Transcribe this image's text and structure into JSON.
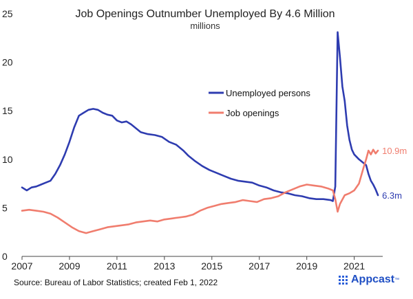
{
  "chart_data": {
    "type": "line",
    "title": "Job Openings Outnumber Unemployed By 4.6 Million",
    "subtitle": "millions",
    "x_ticks": [
      "2007",
      "2009",
      "2011",
      "2013",
      "2015",
      "2017",
      "2019",
      "2021"
    ],
    "y_ticks": [
      0,
      5,
      10,
      15,
      20,
      25
    ],
    "xlim": [
      2007,
      2022.2
    ],
    "ylim": [
      0,
      25
    ],
    "grid": false,
    "legend_position": "center-right",
    "series": [
      {
        "name": "Unemployed persons",
        "color": "#2e3cb0",
        "end_label": "6.3m",
        "points": [
          [
            2007.0,
            7.1
          ],
          [
            2007.2,
            6.8
          ],
          [
            2007.4,
            7.1
          ],
          [
            2007.6,
            7.2
          ],
          [
            2007.8,
            7.4
          ],
          [
            2008.0,
            7.6
          ],
          [
            2008.2,
            7.8
          ],
          [
            2008.4,
            8.5
          ],
          [
            2008.6,
            9.4
          ],
          [
            2008.8,
            10.5
          ],
          [
            2009.0,
            11.8
          ],
          [
            2009.2,
            13.3
          ],
          [
            2009.4,
            14.5
          ],
          [
            2009.6,
            14.8
          ],
          [
            2009.8,
            15.1
          ],
          [
            2010.0,
            15.2
          ],
          [
            2010.2,
            15.1
          ],
          [
            2010.4,
            14.8
          ],
          [
            2010.6,
            14.6
          ],
          [
            2010.8,
            14.5
          ],
          [
            2011.0,
            14.0
          ],
          [
            2011.2,
            13.8
          ],
          [
            2011.4,
            13.9
          ],
          [
            2011.6,
            13.6
          ],
          [
            2011.8,
            13.2
          ],
          [
            2012.0,
            12.8
          ],
          [
            2012.3,
            12.6
          ],
          [
            2012.6,
            12.5
          ],
          [
            2012.9,
            12.3
          ],
          [
            2013.2,
            11.8
          ],
          [
            2013.5,
            11.5
          ],
          [
            2013.8,
            10.9
          ],
          [
            2014.0,
            10.4
          ],
          [
            2014.3,
            9.8
          ],
          [
            2014.6,
            9.3
          ],
          [
            2014.9,
            8.9
          ],
          [
            2015.2,
            8.6
          ],
          [
            2015.5,
            8.3
          ],
          [
            2015.8,
            8.0
          ],
          [
            2016.1,
            7.8
          ],
          [
            2016.4,
            7.7
          ],
          [
            2016.7,
            7.6
          ],
          [
            2017.0,
            7.3
          ],
          [
            2017.3,
            7.1
          ],
          [
            2017.6,
            6.8
          ],
          [
            2017.9,
            6.6
          ],
          [
            2018.2,
            6.5
          ],
          [
            2018.5,
            6.3
          ],
          [
            2018.8,
            6.2
          ],
          [
            2019.1,
            6.0
          ],
          [
            2019.4,
            5.9
          ],
          [
            2019.7,
            5.9
          ],
          [
            2020.0,
            5.8
          ],
          [
            2020.1,
            5.7
          ],
          [
            2020.2,
            7.2
          ],
          [
            2020.3,
            23.1
          ],
          [
            2020.4,
            20.5
          ],
          [
            2020.5,
            17.5
          ],
          [
            2020.6,
            16.0
          ],
          [
            2020.7,
            13.5
          ],
          [
            2020.8,
            12.0
          ],
          [
            2020.9,
            11.0
          ],
          [
            2021.0,
            10.5
          ],
          [
            2021.2,
            10.0
          ],
          [
            2021.4,
            9.6
          ],
          [
            2021.5,
            9.4
          ],
          [
            2021.6,
            8.5
          ],
          [
            2021.7,
            7.8
          ],
          [
            2021.8,
            7.4
          ],
          [
            2021.9,
            6.9
          ],
          [
            2022.0,
            6.3
          ]
        ]
      },
      {
        "name": "Job openings",
        "color": "#f07d6e",
        "end_label": "10.9m",
        "points": [
          [
            2007.0,
            4.7
          ],
          [
            2007.3,
            4.8
          ],
          [
            2007.6,
            4.7
          ],
          [
            2007.9,
            4.6
          ],
          [
            2008.2,
            4.4
          ],
          [
            2008.5,
            4.0
          ],
          [
            2008.8,
            3.5
          ],
          [
            2009.1,
            3.0
          ],
          [
            2009.4,
            2.6
          ],
          [
            2009.7,
            2.4
          ],
          [
            2010.0,
            2.6
          ],
          [
            2010.3,
            2.8
          ],
          [
            2010.6,
            3.0
          ],
          [
            2010.9,
            3.1
          ],
          [
            2011.2,
            3.2
          ],
          [
            2011.5,
            3.3
          ],
          [
            2011.8,
            3.5
          ],
          [
            2012.1,
            3.6
          ],
          [
            2012.4,
            3.7
          ],
          [
            2012.7,
            3.6
          ],
          [
            2013.0,
            3.8
          ],
          [
            2013.3,
            3.9
          ],
          [
            2013.6,
            4.0
          ],
          [
            2013.9,
            4.1
          ],
          [
            2014.2,
            4.3
          ],
          [
            2014.5,
            4.7
          ],
          [
            2014.8,
            5.0
          ],
          [
            2015.1,
            5.2
          ],
          [
            2015.4,
            5.4
          ],
          [
            2015.7,
            5.5
          ],
          [
            2016.0,
            5.6
          ],
          [
            2016.3,
            5.8
          ],
          [
            2016.6,
            5.7
          ],
          [
            2016.9,
            5.6
          ],
          [
            2017.2,
            5.9
          ],
          [
            2017.5,
            6.0
          ],
          [
            2017.8,
            6.2
          ],
          [
            2018.1,
            6.6
          ],
          [
            2018.4,
            6.9
          ],
          [
            2018.7,
            7.2
          ],
          [
            2019.0,
            7.4
          ],
          [
            2019.3,
            7.3
          ],
          [
            2019.6,
            7.2
          ],
          [
            2019.9,
            7.0
          ],
          [
            2020.1,
            6.8
          ],
          [
            2020.2,
            5.9
          ],
          [
            2020.3,
            4.6
          ],
          [
            2020.4,
            5.4
          ],
          [
            2020.6,
            6.3
          ],
          [
            2020.8,
            6.5
          ],
          [
            2021.0,
            6.8
          ],
          [
            2021.2,
            7.5
          ],
          [
            2021.4,
            9.2
          ],
          [
            2021.5,
            10.0
          ],
          [
            2021.6,
            10.9
          ],
          [
            2021.7,
            10.5
          ],
          [
            2021.8,
            11.0
          ],
          [
            2021.9,
            10.6
          ],
          [
            2022.0,
            10.9
          ]
        ]
      }
    ]
  },
  "footer": {
    "source": "Source: Bureau of Labor Statistics; created Feb 1, 2022",
    "brand": "Appcast",
    "brand_tm": "™",
    "brand_color": "#1f4fc4"
  }
}
